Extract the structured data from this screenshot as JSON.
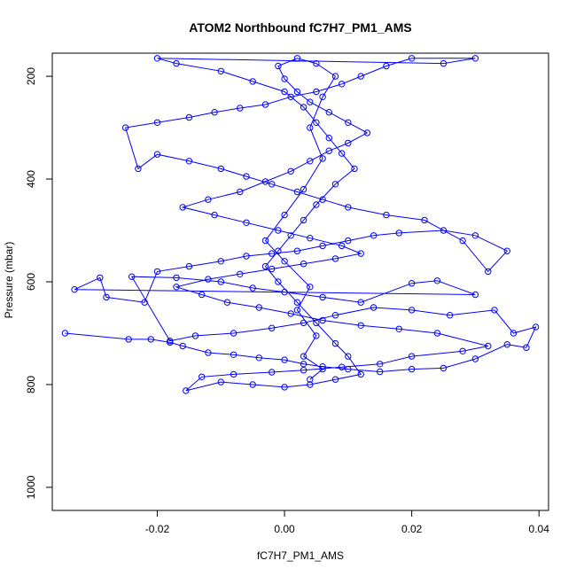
{
  "chart_data": {
    "type": "scatter",
    "title": "ATOM2 Northbound fC7H7_PM1_AMS",
    "xlabel": "fC7H7_PM1_AMS",
    "ylabel": "Pressure (mbar)",
    "xlim": [
      -0.0365,
      0.0415
    ],
    "ylim": [
      1045,
      155
    ],
    "y_reversed": true,
    "x_ticks": [
      -0.02,
      0.0,
      0.02,
      0.04
    ],
    "x_tick_labels": [
      "-0.02",
      "0.00",
      "0.02",
      "0.04"
    ],
    "y_ticks": [
      200,
      400,
      600,
      800,
      1000
    ],
    "y_tick_labels": [
      "200",
      "400",
      "600",
      "800",
      "1000"
    ],
    "grid": false,
    "legend": "none",
    "series": [
      {
        "color": "#0000ff",
        "marker": "open-circle",
        "connected": true,
        "points": [
          [
            -0.0345,
            700
          ],
          [
            -0.0245,
            712
          ],
          [
            -0.021,
            712
          ],
          [
            -0.018,
            718
          ],
          [
            -0.016,
            725
          ],
          [
            -0.012,
            738
          ],
          [
            -0.008,
            742
          ],
          [
            -0.004,
            748
          ],
          [
            0.0,
            752
          ],
          [
            0.003,
            760
          ],
          [
            0.006,
            765
          ],
          [
            0.01,
            770
          ],
          [
            0.015,
            775
          ],
          [
            0.02,
            770
          ],
          [
            0.025,
            768
          ],
          [
            0.03,
            750
          ],
          [
            0.035,
            722
          ],
          [
            0.038,
            728
          ],
          [
            0.0395,
            688
          ],
          [
            0.036,
            700
          ],
          [
            0.033,
            655
          ],
          [
            0.026,
            665
          ],
          [
            0.02,
            655
          ],
          [
            0.014,
            650
          ],
          [
            0.008,
            665
          ],
          [
            0.003,
            680
          ],
          [
            -0.002,
            690
          ],
          [
            -0.008,
            700
          ],
          [
            -0.014,
            705
          ],
          [
            -0.018,
            715
          ],
          [
            -0.024,
            590
          ],
          [
            -0.017,
            592
          ],
          [
            -0.01,
            600
          ],
          [
            -0.005,
            612
          ],
          [
            0.0,
            620
          ],
          [
            0.006,
            630
          ],
          [
            0.012,
            640
          ],
          [
            0.02,
            603
          ],
          [
            0.024,
            598
          ],
          [
            0.03,
            625
          ],
          [
            -0.033,
            615
          ],
          [
            -0.029,
            592
          ],
          [
            -0.028,
            630
          ],
          [
            -0.022,
            640
          ],
          [
            -0.02,
            580
          ],
          [
            -0.015,
            570
          ],
          [
            -0.01,
            560
          ],
          [
            -0.006,
            550
          ],
          [
            -0.002,
            545
          ],
          [
            0.002,
            540
          ],
          [
            0.006,
            530
          ],
          [
            0.01,
            520
          ],
          [
            0.014,
            510
          ],
          [
            0.018,
            505
          ],
          [
            0.025,
            500
          ],
          [
            0.03,
            510
          ],
          [
            0.035,
            540
          ],
          [
            0.032,
            580
          ],
          [
            0.028,
            520
          ],
          [
            0.022,
            480
          ],
          [
            0.016,
            470
          ],
          [
            0.01,
            455
          ],
          [
            0.006,
            440
          ],
          [
            0.002,
            425
          ],
          [
            -0.002,
            410
          ],
          [
            -0.006,
            395
          ],
          [
            -0.01,
            380
          ],
          [
            -0.015,
            365
          ],
          [
            -0.02,
            352
          ],
          [
            -0.023,
            380
          ],
          [
            -0.025,
            300
          ],
          [
            -0.02,
            290
          ],
          [
            -0.015,
            280
          ],
          [
            -0.011,
            270
          ],
          [
            -0.007,
            262
          ],
          [
            -0.003,
            255
          ],
          [
            0.001,
            240
          ],
          [
            0.005,
            230
          ],
          [
            0.009,
            215
          ],
          [
            0.012,
            200
          ],
          [
            0.016,
            180
          ],
          [
            0.02,
            165
          ],
          [
            0.03,
            165
          ],
          [
            0.025,
            175
          ],
          [
            -0.02,
            165
          ],
          [
            -0.017,
            175
          ],
          [
            -0.01,
            190
          ],
          [
            -0.005,
            210
          ],
          [
            0.0,
            230
          ],
          [
            0.003,
            260
          ],
          [
            0.005,
            290
          ],
          [
            0.007,
            320
          ],
          [
            0.009,
            350
          ],
          [
            0.011,
            380
          ],
          [
            0.008,
            410
          ],
          [
            0.005,
            450
          ],
          [
            0.003,
            480
          ],
          [
            0.001,
            510
          ],
          [
            -0.001,
            540
          ],
          [
            -0.003,
            570
          ],
          [
            -0.001,
            600
          ],
          [
            0.002,
            640
          ],
          [
            0.005,
            680
          ],
          [
            0.008,
            720
          ],
          [
            0.01,
            745
          ],
          [
            0.012,
            780
          ],
          [
            0.008,
            790
          ],
          [
            0.004,
            800
          ],
          [
            0.0,
            805
          ],
          [
            -0.005,
            800
          ],
          [
            -0.01,
            795
          ],
          [
            -0.0155,
            812
          ],
          [
            -0.013,
            785
          ],
          [
            -0.008,
            780
          ],
          [
            -0.002,
            776
          ],
          [
            0.003,
            772
          ],
          [
            0.009,
            766
          ],
          [
            0.015,
            760
          ],
          [
            0.02,
            745
          ],
          [
            0.028,
            735
          ],
          [
            0.032,
            725
          ],
          [
            0.024,
            700
          ],
          [
            0.018,
            692
          ],
          [
            0.012,
            685
          ],
          [
            0.006,
            675
          ],
          [
            0.001,
            662
          ],
          [
            -0.004,
            650
          ],
          [
            -0.009,
            640
          ],
          [
            -0.013,
            625
          ],
          [
            -0.017,
            610
          ],
          [
            -0.012,
            595
          ],
          [
            -0.007,
            585
          ],
          [
            -0.002,
            575
          ],
          [
            0.003,
            565
          ],
          [
            0.008,
            555
          ],
          [
            0.012,
            545
          ],
          [
            0.009,
            530
          ],
          [
            0.004,
            515
          ],
          [
            -0.001,
            500
          ],
          [
            -0.006,
            485
          ],
          [
            -0.011,
            470
          ],
          [
            -0.016,
            455
          ],
          [
            -0.012,
            440
          ],
          [
            -0.007,
            425
          ],
          [
            -0.003,
            405
          ],
          [
            0.001,
            385
          ],
          [
            0.004,
            365
          ],
          [
            0.007,
            345
          ],
          [
            0.01,
            330
          ],
          [
            0.013,
            310
          ],
          [
            0.01,
            290
          ],
          [
            0.007,
            270
          ],
          [
            0.004,
            250
          ],
          [
            0.002,
            230
          ],
          [
            0.0,
            205
          ],
          [
            -0.001,
            180
          ],
          [
            0.002,
            165
          ],
          [
            0.005,
            175
          ],
          [
            0.008,
            200
          ],
          [
            0.006,
            240
          ],
          [
            0.004,
            300
          ],
          [
            0.006,
            360
          ],
          [
            0.003,
            420
          ],
          [
            0.0,
            470
          ],
          [
            -0.003,
            520
          ],
          [
            0.0,
            560
          ],
          [
            0.004,
            610
          ],
          [
            0.002,
            655
          ],
          [
            0.005,
            705
          ],
          [
            0.003,
            745
          ],
          [
            0.006,
            770
          ],
          [
            0.004,
            790
          ]
        ]
      }
    ]
  }
}
